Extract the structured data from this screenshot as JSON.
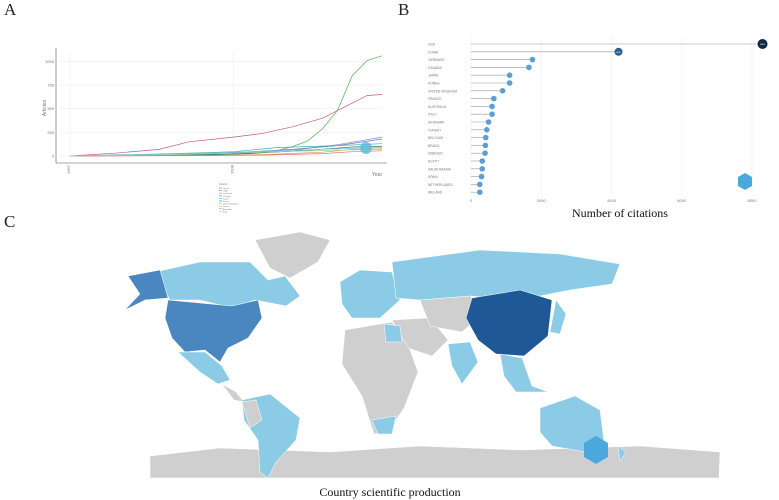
{
  "panels": {
    "a": "A",
    "b": "B",
    "c": "C"
  },
  "chart_data": [
    {
      "type": "line",
      "title": "",
      "xlabel": "Year",
      "ylabel": "Articles",
      "xlim": [
        1997,
        2018
      ],
      "ylim": [
        0,
        1100
      ],
      "xticks": [
        "1997",
        "2008"
      ],
      "yticks": [
        "0",
        "250",
        "500",
        "750",
        "1000"
      ],
      "legend_title": "Country",
      "legend_placement": "bottom",
      "series": [
        {
          "name": "China",
          "color": "#4caf50",
          "x": [
            1997,
            2000,
            2004,
            2008,
            2010,
            2011,
            2012,
            2013,
            2014,
            2015,
            2016,
            2017,
            2018
          ],
          "y": [
            0,
            5,
            10,
            20,
            40,
            60,
            100,
            160,
            290,
            480,
            850,
            1010,
            1060
          ]
        },
        {
          "name": "USA",
          "color": "#c2578a",
          "x": [
            1997,
            2000,
            2003,
            2005,
            2008,
            2010,
            2012,
            2014,
            2016,
            2017,
            2018
          ],
          "y": [
            0,
            30,
            70,
            150,
            200,
            240,
            310,
            400,
            560,
            640,
            650
          ]
        },
        {
          "name": "Germany",
          "color": "#8a8fd6",
          "x": [
            1997,
            2004,
            2008,
            2012,
            2015,
            2018
          ],
          "y": [
            0,
            15,
            30,
            60,
            120,
            200
          ]
        },
        {
          "name": "Canada",
          "color": "#5c7fb8",
          "x": [
            1997,
            2004,
            2008,
            2012,
            2015,
            2018
          ],
          "y": [
            0,
            20,
            35,
            70,
            110,
            180
          ]
        },
        {
          "name": "Japan",
          "color": "#40b0a6",
          "x": [
            1997,
            2004,
            2008,
            2011,
            2015,
            2018
          ],
          "y": [
            0,
            25,
            45,
            90,
            110,
            130
          ]
        },
        {
          "name": "Korea",
          "color": "#2e7d5b",
          "x": [
            1997,
            2005,
            2009,
            2013,
            2016,
            2018
          ],
          "y": [
            0,
            10,
            25,
            60,
            95,
            100
          ]
        },
        {
          "name": "United Kingdom",
          "color": "#7fc8e0",
          "x": [
            1997,
            2004,
            2008,
            2012,
            2016,
            2018
          ],
          "y": [
            0,
            20,
            40,
            60,
            80,
            90
          ]
        },
        {
          "name": "France",
          "color": "#e0a040",
          "x": [
            1997,
            2006,
            2010,
            2014,
            2016,
            2018
          ],
          "y": [
            0,
            5,
            15,
            40,
            70,
            75
          ]
        },
        {
          "name": "Australia",
          "color": "#e57373",
          "x": [
            1997,
            2006,
            2010,
            2014,
            2016,
            2018
          ],
          "y": [
            0,
            5,
            10,
            25,
            45,
            55
          ]
        },
        {
          "name": "Italy",
          "color": "#9fd3a8",
          "x": [
            1997,
            2004,
            2008,
            2012,
            2016,
            2018
          ],
          "y": [
            0,
            15,
            30,
            50,
            65,
            70
          ]
        }
      ]
    },
    {
      "type": "lollipop",
      "xlabel": "Number of citations",
      "xlim": [
        0,
        8500
      ],
      "xticks": [
        "0",
        "2000",
        "4000",
        "6000",
        "8000"
      ],
      "categories": [
        "USA",
        "CHINA",
        "GERMANY",
        "CANADA",
        "JAPAN",
        "KOREA",
        "UNITED KINGDOM",
        "FRANCE",
        "AUSTRALIA",
        "ITALY",
        "DENMARK",
        "TURKEY",
        "BELGIUM",
        "BRAZIL",
        "SWEDEN",
        "EGYPT",
        "SAUDI ARABIA",
        "SPAIN",
        "NETHERLANDS",
        "IRELAND"
      ],
      "values": [
        8300,
        4200,
        1750,
        1650,
        1100,
        1100,
        900,
        650,
        600,
        600,
        500,
        450,
        420,
        410,
        400,
        320,
        320,
        300,
        250,
        250
      ]
    }
  ],
  "map": {
    "caption": "Country scientific production",
    "colors": {
      "none": "#cfcfcf",
      "low": "#8ccbe6",
      "mid": "#4a86bf",
      "high": "#1f5896"
    }
  }
}
